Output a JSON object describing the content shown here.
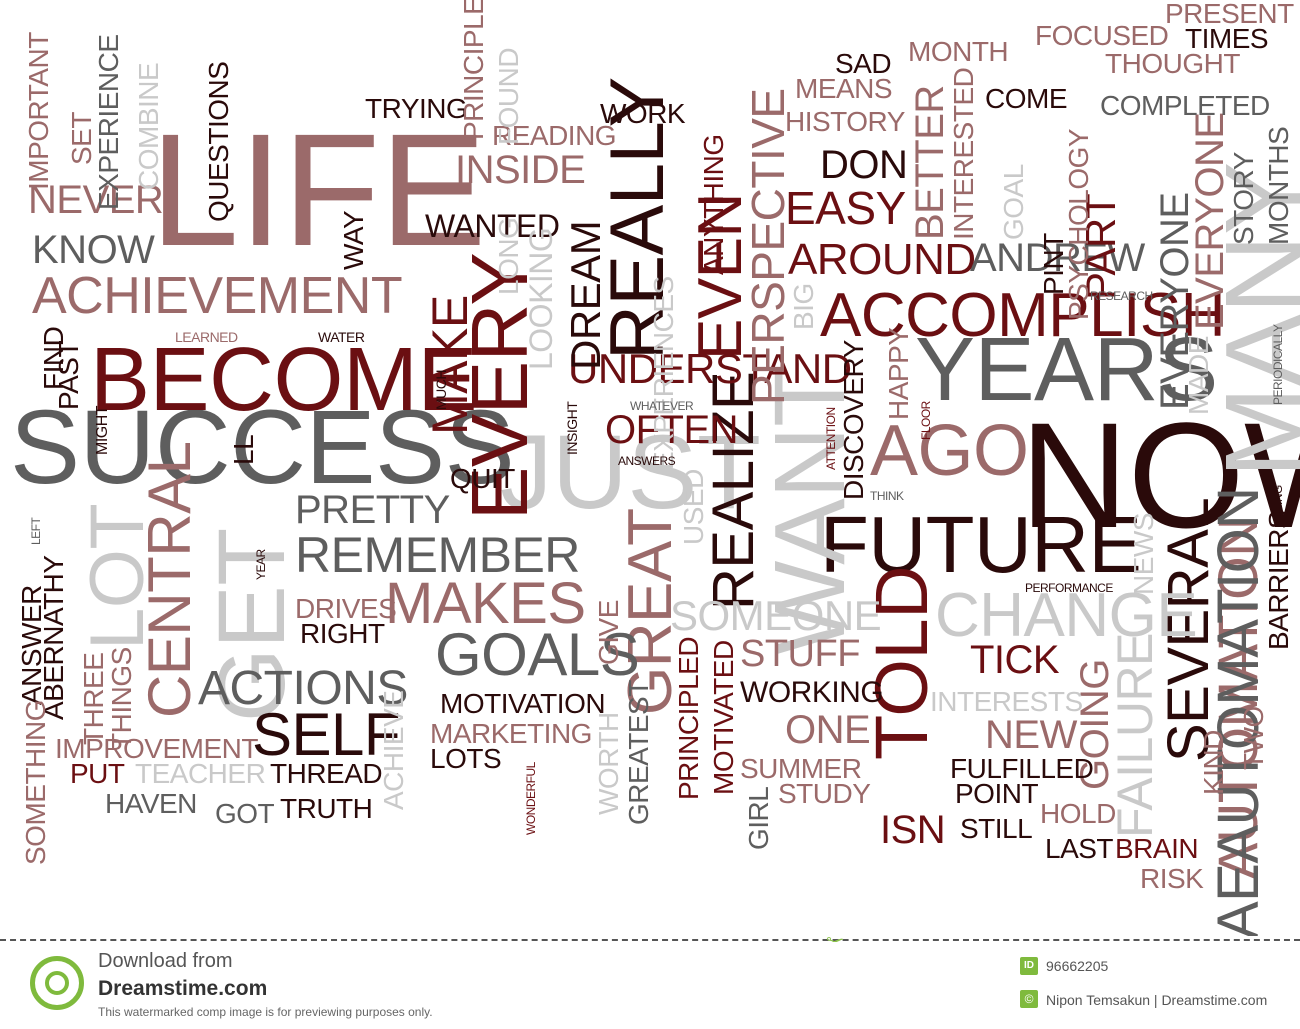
{
  "words": [
    {
      "t": "LIFE",
      "c": "c-rose"
    },
    {
      "t": "SUCCESS",
      "c": "c-grey"
    },
    {
      "t": "NOW",
      "c": "c-dark"
    },
    {
      "t": "BECOME",
      "c": "c-dred"
    },
    {
      "t": "YEARS",
      "c": "c-grey"
    },
    {
      "t": "FUTURE",
      "c": "c-dark"
    },
    {
      "t": "ACCOMPLISH",
      "c": "c-dred"
    },
    {
      "t": "ACHIEVEMENT",
      "c": "c-rose"
    },
    {
      "t": "JUST",
      "c": "c-lgrey"
    },
    {
      "t": "GET",
      "c": "c-lgrey"
    },
    {
      "t": "WANT",
      "c": "c-lgrey"
    },
    {
      "t": "MANY",
      "c": "c-lgrey"
    },
    {
      "t": "AGO",
      "c": "c-rose"
    },
    {
      "t": "EVERY",
      "c": "c-dred"
    },
    {
      "t": "REALLY",
      "c": "c-dark"
    },
    {
      "t": "EVEN",
      "c": "c-dred"
    },
    {
      "t": "REALIZE",
      "c": "c-dark"
    },
    {
      "t": "TOLD",
      "c": "c-dred"
    },
    {
      "t": "GREAT",
      "c": "c-rose"
    },
    {
      "t": "CENTRAL",
      "c": "c-rose"
    },
    {
      "t": "LOT",
      "c": "c-lgrey"
    },
    {
      "t": "SEVERAL",
      "c": "c-dark"
    },
    {
      "t": "AUTOMATION",
      "c": "c-rose"
    },
    {
      "t": "AEAUTOMATION",
      "c": "c-grey"
    },
    {
      "t": "FAILURE",
      "c": "c-lgrey"
    },
    {
      "t": "GOING",
      "c": "c-rose"
    },
    {
      "t": "CHANGE",
      "c": "c-lgrey"
    },
    {
      "t": "REMEMBER",
      "c": "c-grey"
    },
    {
      "t": "MAKES",
      "c": "c-rose"
    },
    {
      "t": "GOALS",
      "c": "c-grey"
    },
    {
      "t": "SELF",
      "c": "c-dark"
    },
    {
      "t": "ACTIONS",
      "c": "c-grey"
    },
    {
      "t": "UNDERSTAND",
      "c": "c-dred"
    },
    {
      "t": "AROUND",
      "c": "c-dred"
    },
    {
      "t": "ANDREW",
      "c": "c-grey"
    },
    {
      "t": "PERSPECTIVE",
      "c": "c-rose"
    },
    {
      "t": "EVERYONE",
      "c": "c-rose"
    },
    {
      "t": "EVERYONE",
      "c": "c-grey"
    },
    {
      "t": "EASY",
      "c": "c-dred"
    },
    {
      "t": "DON",
      "c": "c-dark"
    },
    {
      "t": "BETTER",
      "c": "c-rose"
    },
    {
      "t": "PART",
      "c": "c-dred"
    },
    {
      "t": "KNOW",
      "c": "c-grey"
    },
    {
      "t": "NEVER",
      "c": "c-rose"
    },
    {
      "t": "INSIDE",
      "c": "c-rose"
    },
    {
      "t": "WANTED",
      "c": "c-dark"
    },
    {
      "t": "QUESTIONS",
      "c": "c-dark"
    },
    {
      "t": "MAKE",
      "c": "c-dred"
    },
    {
      "t": "DREAM",
      "c": "c-dark"
    },
    {
      "t": "LOOKING",
      "c": "c-lgrey"
    },
    {
      "t": "OFTEN",
      "c": "c-dred"
    },
    {
      "t": "PRETTY",
      "c": "c-grey"
    },
    {
      "t": "SOMEONE",
      "c": "c-lgrey"
    },
    {
      "t": "STUFF",
      "c": "c-rose"
    },
    {
      "t": "ONE",
      "c": "c-rose"
    },
    {
      "t": "TICK",
      "c": "c-dred"
    },
    {
      "t": "NEW",
      "c": "c-rose"
    },
    {
      "t": "ISN",
      "c": "c-dred"
    },
    {
      "t": "WORKING",
      "c": "c-dark"
    },
    {
      "t": "MOTIVATION",
      "c": "c-dark"
    },
    {
      "t": "MARKETING",
      "c": "c-rose"
    },
    {
      "t": "THREAD",
      "c": "c-dark"
    },
    {
      "t": "TRUTH",
      "c": "c-dark"
    },
    {
      "t": "GOT",
      "c": "c-grey"
    },
    {
      "t": "HAVEN",
      "c": "c-grey"
    },
    {
      "t": "PUT",
      "c": "c-dred"
    },
    {
      "t": "TEACHER",
      "c": "c-lgrey"
    },
    {
      "t": "IMPROVEMENT",
      "c": "c-rose"
    },
    {
      "t": "LOTS",
      "c": "c-dark"
    },
    {
      "t": "SUMMER",
      "c": "c-rose"
    },
    {
      "t": "STUDY",
      "c": "c-rose"
    },
    {
      "t": "POINT",
      "c": "c-dark"
    },
    {
      "t": "STILL",
      "c": "c-dark"
    },
    {
      "t": "FULFILLED",
      "c": "c-dark"
    },
    {
      "t": "HOLD",
      "c": "c-rose"
    },
    {
      "t": "LAST",
      "c": "c-dark"
    },
    {
      "t": "BRAIN",
      "c": "c-dred"
    },
    {
      "t": "RISK",
      "c": "c-rose"
    },
    {
      "t": "INTERESTS",
      "c": "c-lgrey"
    },
    {
      "t": "QUIT",
      "c": "c-dark"
    },
    {
      "t": "DRIVES",
      "c": "c-rose"
    },
    {
      "t": "RIGHT",
      "c": "c-dark"
    },
    {
      "t": "TRYING",
      "c": "c-dark"
    },
    {
      "t": "READING",
      "c": "c-rose"
    },
    {
      "t": "WORK",
      "c": "c-dark"
    },
    {
      "t": "SAD",
      "c": "c-dark"
    },
    {
      "t": "MEANS",
      "c": "c-rose"
    },
    {
      "t": "HISTORY",
      "c": "c-rose"
    },
    {
      "t": "MONTH",
      "c": "c-rose"
    },
    {
      "t": "FOCUSED",
      "c": "c-rose"
    },
    {
      "t": "PRESENT",
      "c": "c-rose"
    },
    {
      "t": "TIMES",
      "c": "c-dark"
    },
    {
      "t": "THOUGHT",
      "c": "c-rose"
    },
    {
      "t": "COME",
      "c": "c-dark"
    },
    {
      "t": "COMPLETED",
      "c": "c-grey"
    },
    {
      "t": "DISCOVERY",
      "c": "c-dark"
    },
    {
      "t": "HAPPY",
      "c": "c-rose"
    },
    {
      "t": "PRINCIPLED",
      "c": "c-dred"
    },
    {
      "t": "MOTIVATED",
      "c": "c-dred"
    },
    {
      "t": "GREATEST",
      "c": "c-grey"
    },
    {
      "t": "GIRL",
      "c": "c-grey"
    },
    {
      "t": "ACHIEVE",
      "c": "c-lgrey"
    },
    {
      "t": "SET",
      "c": "c-rose"
    },
    {
      "t": "IMPORTANT",
      "c": "c-rose"
    },
    {
      "t": "EXPERIENCE",
      "c": "c-grey"
    },
    {
      "t": "COMBINE",
      "c": "c-lgrey"
    },
    {
      "t": "PRINCIPLES",
      "c": "c-rose"
    },
    {
      "t": "FOUND",
      "c": "c-lgrey"
    },
    {
      "t": "WAY",
      "c": "c-dark"
    },
    {
      "t": "LONG",
      "c": "c-lgrey"
    },
    {
      "t": "EXPERIENCES",
      "c": "c-lgrey"
    },
    {
      "t": "ANYTHING",
      "c": "c-dred"
    },
    {
      "t": "BIG",
      "c": "c-lgrey"
    },
    {
      "t": "INTERESTED",
      "c": "c-rose"
    },
    {
      "t": "GOAL",
      "c": "c-lgrey"
    },
    {
      "t": "PINT",
      "c": "c-dark"
    },
    {
      "t": "PSYCHOLOGY",
      "c": "c-rose"
    },
    {
      "t": "STORY",
      "c": "c-grey"
    },
    {
      "t": "MONTHS",
      "c": "c-grey"
    },
    {
      "t": "MADE",
      "c": "c-lgrey"
    },
    {
      "t": "NEWS",
      "c": "c-lgrey"
    },
    {
      "t": "USED",
      "c": "c-lgrey"
    },
    {
      "t": "GIVE",
      "c": "c-rose"
    },
    {
      "t": "WORTH",
      "c": "c-lgrey"
    },
    {
      "t": "KIND",
      "c": "c-rose"
    },
    {
      "t": "TWO",
      "c": "c-rose"
    },
    {
      "t": "BARRIERS",
      "c": "c-dark"
    },
    {
      "t": "THREE",
      "c": "c-rose"
    },
    {
      "t": "THINGS",
      "c": "c-rose"
    },
    {
      "t": "ANSWER",
      "c": "c-dark"
    },
    {
      "t": "ABERNATHY",
      "c": "c-dark"
    },
    {
      "t": "SOMETHING",
      "c": "c-rose"
    },
    {
      "t": "FIND",
      "c": "c-dark"
    },
    {
      "t": "PAST",
      "c": "c-dark"
    },
    {
      "t": "LL",
      "c": "c-dark"
    },
    {
      "t": "LEARNED",
      "c": "c-rose"
    },
    {
      "t": "WATER",
      "c": "c-dark"
    },
    {
      "t": "MIGHT",
      "c": "c-dark"
    },
    {
      "t": "MUCH",
      "c": "c-dark"
    },
    {
      "t": "INSIGHT",
      "c": "c-dark"
    },
    {
      "t": "ANSWERS",
      "c": "c-dark"
    },
    {
      "t": "WHATEVER",
      "c": "c-grey"
    },
    {
      "t": "ATTENTION",
      "c": "c-dred"
    },
    {
      "t": "FLOOR",
      "c": "c-dred"
    },
    {
      "t": "THINK",
      "c": "c-grey"
    },
    {
      "t": "PERFORMANCE",
      "c": "c-dark"
    },
    {
      "t": "RESEARCH",
      "c": "c-grey"
    },
    {
      "t": "PERIODICALLY",
      "c": "c-grey"
    },
    {
      "t": "THING",
      "c": "c-dark"
    },
    {
      "t": "LEFT",
      "c": "c-grey"
    },
    {
      "t": "YEAR",
      "c": "c-dark"
    },
    {
      "t": "WONDERFUL",
      "c": "c-dred"
    }
  ],
  "footer": {
    "download_label": "Download from",
    "site_name": "Dreamstime.com",
    "note": "This watermarked comp image is for previewing purposes only.",
    "id_badge": "ID",
    "id_number": "96662205",
    "copyright_badge": "©",
    "credit": "Nipon Temsakun | Dreamstime.com"
  }
}
